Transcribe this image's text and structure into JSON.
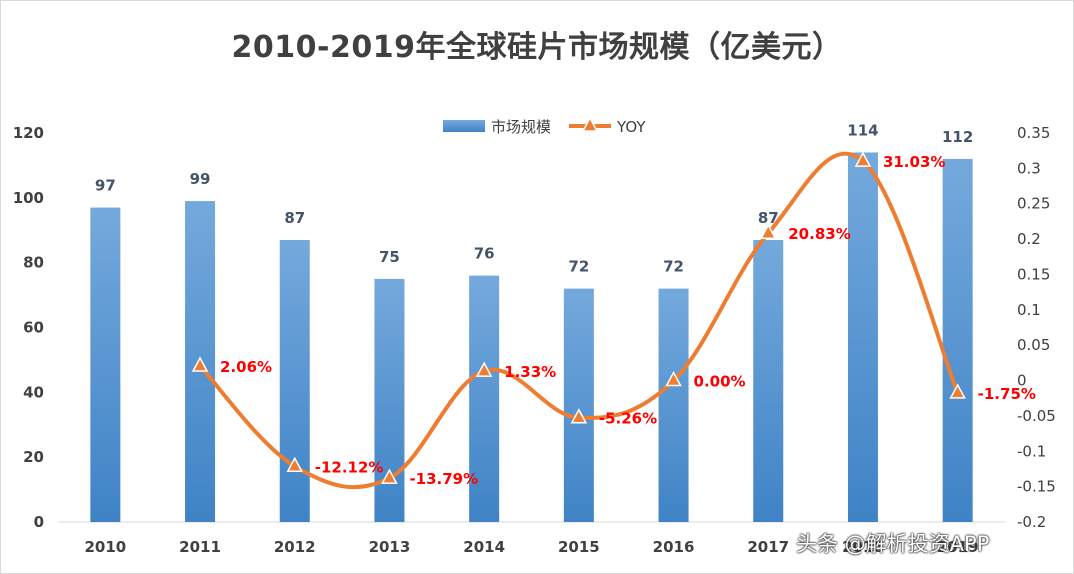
{
  "chart_data": {
    "type": "bar+line",
    "title": "2010-2019年全球硅片市场规模（亿美元）",
    "categories": [
      "2010",
      "2011",
      "2012",
      "2013",
      "2014",
      "2015",
      "2016",
      "2017",
      "2018",
      "2019"
    ],
    "series": [
      {
        "name": "市场规模",
        "type": "bar",
        "axis": "left",
        "values": [
          97,
          99,
          87,
          75,
          76,
          72,
          72,
          87,
          114,
          112
        ],
        "color": "#5b9bd5"
      },
      {
        "name": "YOY",
        "type": "line",
        "axis": "right",
        "values": [
          null,
          0.0206,
          -0.1212,
          -0.1379,
          0.0133,
          -0.0526,
          0.0,
          0.2083,
          0.3103,
          -0.0175
        ],
        "labels": [
          null,
          "2.06%",
          "-12.12%",
          "-13.79%",
          "1.33%",
          "-5.26%",
          "0.00%",
          "20.83%",
          "31.03%",
          "-1.75%"
        ],
        "color": "#ed7d31"
      }
    ],
    "y_left": {
      "min": 0,
      "max": 120,
      "ticks": [
        "0",
        "20",
        "40",
        "60",
        "80",
        "100",
        "120"
      ]
    },
    "y_right": {
      "min": -0.2,
      "max": 0.35,
      "ticks": [
        "-0.2",
        "-0.15",
        "-0.1",
        "-0.05",
        "0",
        "0.05",
        "0.1",
        "0.15",
        "0.2",
        "0.25",
        "0.3",
        "0.35"
      ]
    },
    "legend_position": "top"
  },
  "watermark": "头条 @解析投资APP"
}
